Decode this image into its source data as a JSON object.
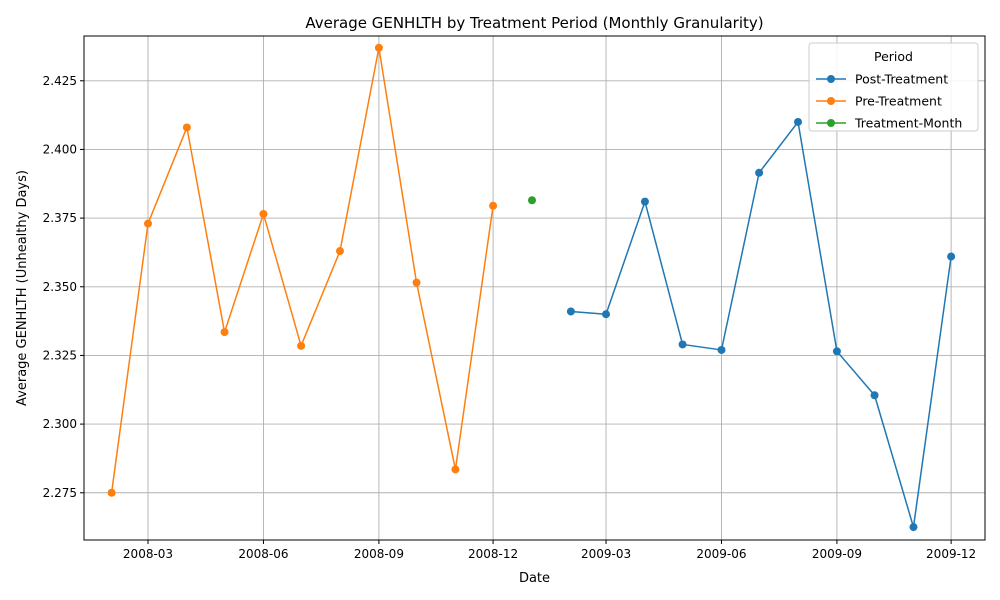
{
  "chart_data": {
    "type": "line",
    "title": "Average GENHLTH by Treatment Period (Monthly Granularity)",
    "xlabel": "Date",
    "ylabel": "Average GENHLTH (Unhealthy Days)",
    "grid": true,
    "legend": {
      "title": "Period",
      "placement": "top-right"
    },
    "xlim": [
      "2008-01-10",
      "2009-12-28"
    ],
    "ylim": [
      2.2578,
      2.4413
    ],
    "x_ticks": [
      "2008-03",
      "2008-06",
      "2008-09",
      "2008-12",
      "2009-03",
      "2009-06",
      "2009-09",
      "2009-12"
    ],
    "y_ticks": [
      "2.275",
      "2.300",
      "2.325",
      "2.350",
      "2.375",
      "2.400",
      "2.425"
    ],
    "series": [
      {
        "name": "Post-Treatment",
        "color": "#1f77b4",
        "x": [
          "2009-02-01",
          "2009-03-01",
          "2009-04-01",
          "2009-05-01",
          "2009-06-01",
          "2009-07-01",
          "2009-08-01",
          "2009-09-01",
          "2009-10-01",
          "2009-11-01",
          "2009-12-01"
        ],
        "y": [
          2.341,
          2.34,
          2.381,
          2.329,
          2.327,
          2.3915,
          2.41,
          2.3265,
          2.3105,
          2.2625,
          2.361
        ]
      },
      {
        "name": "Pre-Treatment",
        "color": "#ff7f0e",
        "x": [
          "2008-02-01",
          "2008-03-01",
          "2008-04-01",
          "2008-05-01",
          "2008-06-01",
          "2008-07-01",
          "2008-08-01",
          "2008-09-01",
          "2008-10-01",
          "2008-11-01",
          "2008-12-01"
        ],
        "y": [
          2.275,
          2.373,
          2.408,
          2.3335,
          2.3765,
          2.3285,
          2.363,
          2.437,
          2.3515,
          2.2835,
          2.3795
        ]
      },
      {
        "name": "Treatment-Month",
        "color": "#2ca02c",
        "x": [
          "2009-01-01"
        ],
        "y": [
          2.3815
        ]
      }
    ]
  }
}
